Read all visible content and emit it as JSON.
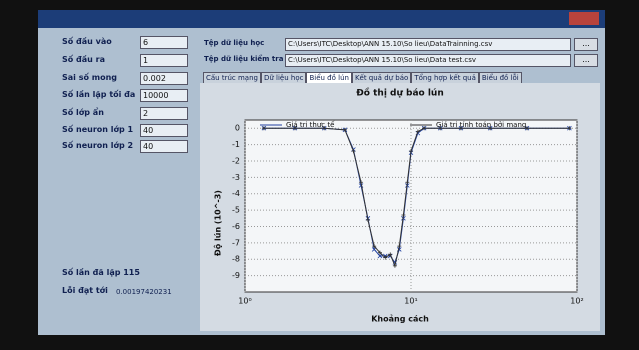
{
  "window": {
    "params": [
      {
        "label": "Số đầu vào",
        "value": "6"
      },
      {
        "label": "Số đầu ra",
        "value": "1"
      },
      {
        "label": "Sai số mong",
        "value": "0.002"
      },
      {
        "label": "Số lần lặp tối đa",
        "value": "10000"
      },
      {
        "label": "Số lớp ẩn",
        "value": "2"
      },
      {
        "label": "Số neuron lớp 1",
        "value": "40"
      },
      {
        "label": "Số neuron lớp 2",
        "value": "40"
      }
    ],
    "iterations": "Số lần đã lặp 115",
    "error_label": "Lỗi đạt tới",
    "error_value": "0.00197420231",
    "files": [
      {
        "label": "Tệp dữ liệu học",
        "path": "C:\\Users\\ITC\\Desktop\\ANN 15.10\\So lieu\\DataTrainning.csv",
        "button": "..."
      },
      {
        "label": "Tệp dữ liệu kiểm tra",
        "path": "C:\\Users\\ITC\\Desktop\\ANN 15.10\\So lieu\\Data test.csv",
        "button": "..."
      }
    ],
    "tabs": [
      "Cấu trúc mạng",
      "Dữ liệu học",
      "Biểu đồ lún",
      "Kết quả dự báo",
      "Tổng hợp kết quả",
      "Biểu đồ lỗi"
    ]
  },
  "chart_data": {
    "type": "line",
    "title": "Đồ thị dự báo lún",
    "x_label": "Khoảng cách",
    "y_label": "Độ lún (10^-3)",
    "x": [
      1.3,
      2,
      3,
      4,
      4.5,
      5,
      5.5,
      6,
      6.5,
      7,
      7.5,
      8,
      8.5,
      9,
      9.5,
      10,
      11,
      12,
      15,
      20,
      30,
      50,
      90
    ],
    "series": [
      {
        "name": "Giá trị thực tế",
        "color": "#1f3f9f",
        "values": [
          0,
          0,
          0,
          -0.1,
          -1.3,
          -3.5,
          -5.5,
          -7.4,
          -7.8,
          -7.8,
          -7.8,
          -8.2,
          -7.4,
          -5.5,
          -3.5,
          -1.5,
          -0.3,
          0,
          0,
          0,
          0,
          0,
          0
        ]
      },
      {
        "name": "Giá trị tính toán bởi mạng",
        "color": "#333333",
        "values": [
          0,
          0,
          0,
          -0.1,
          -1.4,
          -3.3,
          -5.6,
          -7.2,
          -7.6,
          -7.9,
          -7.7,
          -8.4,
          -7.2,
          -5.3,
          -3.3,
          -1.4,
          -0.2,
          0,
          0,
          0,
          0,
          0,
          0
        ]
      }
    ],
    "xlog": true,
    "xlim": [
      1,
      100
    ],
    "xticks": [
      {
        "value": 1,
        "label": "10⁰"
      },
      {
        "value": 10,
        "label": "10¹"
      },
      {
        "value": 100,
        "label": "10²"
      }
    ],
    "ylim": [
      -10,
      0.5
    ],
    "yticks": [
      0,
      -1,
      -2,
      -3,
      -4,
      -5,
      -6,
      -7,
      -8,
      -9
    ],
    "grid": true
  }
}
